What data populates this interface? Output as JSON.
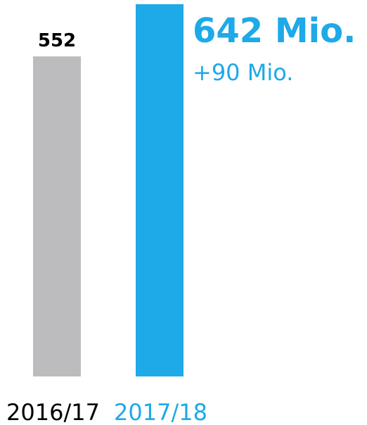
{
  "chart_data": {
    "type": "bar",
    "categories": [
      "2016/17",
      "2017/18"
    ],
    "values": [
      552,
      642
    ],
    "data_labels": [
      "552",
      "642 Mio."
    ],
    "annotation": "+90 Mio.",
    "ylim": [
      0,
      642
    ],
    "grid": false,
    "legend": "none"
  },
  "colors": {
    "previous": "#bcbcbe",
    "current": "#1ea9e8",
    "text_dark": "#000000",
    "text_accent": "#1ea9e8"
  }
}
